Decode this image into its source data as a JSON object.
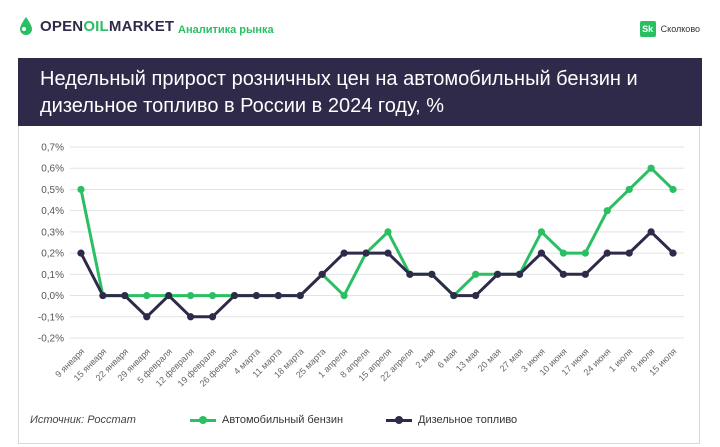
{
  "header": {
    "logo_prefix": "OPEN",
    "logo_accent": "OIL",
    "logo_suffix": "MARKET",
    "subtitle": "Аналитика рынка",
    "partner_badge": "Sk",
    "partner_name": "Сколково"
  },
  "title": "Недельный прирост розничных цен на автомобильный бензин и дизельное топливо в России в 2024 году, %",
  "source": "Источник: Росстат",
  "colors": {
    "gasoline": "#2bbf64",
    "diesel": "#2f2a4a",
    "banner": "#2f2a4a"
  },
  "chart_data": {
    "type": "line",
    "categories": [
      "9 января",
      "15 января",
      "22 января",
      "29 января",
      "5 февраля",
      "12 февраля",
      "19 февраля",
      "26 февраля",
      "4 марта",
      "11 марта",
      "18 марта",
      "25 марта",
      "1 апреля",
      "8 апреля",
      "15 апреля",
      "22 апреля",
      "2 мая",
      "6 мая",
      "13 мая",
      "20 мая",
      "27 мая",
      "3 июня",
      "10 июня",
      "17 июня",
      "24 июня",
      "1 июля",
      "8 июля",
      "15 июля"
    ],
    "series": [
      {
        "name": "Автомобильный бензин",
        "values": [
          0.5,
          0.0,
          0.0,
          0.0,
          0.0,
          0.0,
          0.0,
          0.0,
          0.0,
          0.0,
          0.0,
          0.1,
          0.0,
          0.2,
          0.3,
          0.1,
          0.1,
          0.0,
          0.1,
          0.1,
          0.1,
          0.3,
          0.2,
          0.2,
          0.4,
          0.5,
          0.6,
          0.5
        ]
      },
      {
        "name": "Дизельное топливо",
        "values": [
          0.2,
          0.0,
          0.0,
          -0.1,
          0.0,
          -0.1,
          -0.1,
          0.0,
          0.0,
          0.0,
          0.0,
          0.1,
          0.2,
          0.2,
          0.2,
          0.1,
          0.1,
          0.0,
          0.0,
          0.1,
          0.1,
          0.2,
          0.1,
          0.1,
          0.2,
          0.2,
          0.3,
          0.2
        ]
      }
    ],
    "yticks": [
      "0,7%",
      "0,6%",
      "0,5%",
      "0,4%",
      "0,3%",
      "0,2%",
      "0,1%",
      "0,0%",
      "-0,1%",
      "-0,2%"
    ],
    "ylim": [
      -0.2,
      0.7
    ],
    "grid": true,
    "legend": "bottom"
  }
}
